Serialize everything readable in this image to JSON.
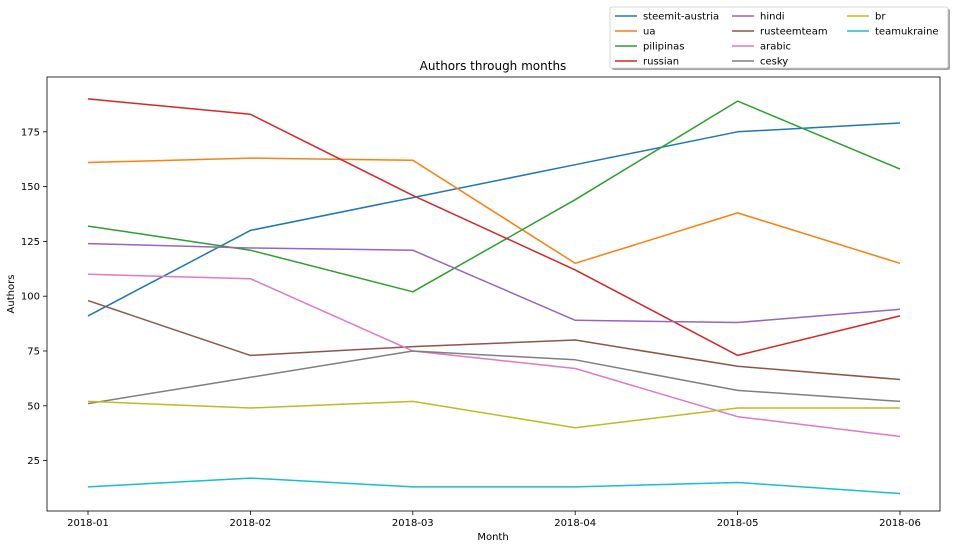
{
  "chart_data": {
    "type": "line",
    "title": "Authors through months",
    "xlabel": "Month",
    "ylabel": "Authors",
    "categories": [
      "2018-01",
      "2018-02",
      "2018-03",
      "2018-04",
      "2018-05",
      "2018-06"
    ],
    "ylim": [
      2,
      200
    ],
    "yticks": [
      25,
      50,
      75,
      100,
      125,
      150,
      175
    ],
    "grid": false,
    "legend_placement": "top-right, outside plot",
    "series": [
      {
        "name": "steemit-austria",
        "color": "#1f77b4",
        "values": [
          91,
          130,
          145,
          160,
          175,
          179
        ]
      },
      {
        "name": "ua",
        "color": "#ff7f0e",
        "values": [
          161,
          163,
          162,
          115,
          138,
          115
        ]
      },
      {
        "name": "pilipinas",
        "color": "#2ca02c",
        "values": [
          132,
          121,
          102,
          144,
          189,
          158
        ]
      },
      {
        "name": "russian",
        "color": "#d62728",
        "values": [
          190,
          183,
          146,
          112,
          73,
          91
        ]
      },
      {
        "name": "hindi",
        "color": "#9467bd",
        "values": [
          124,
          122,
          121,
          89,
          88,
          94
        ]
      },
      {
        "name": "rusteemteam",
        "color": "#8c564b",
        "values": [
          98,
          73,
          77,
          80,
          68,
          62
        ]
      },
      {
        "name": "arabic",
        "color": "#e377c2",
        "values": [
          110,
          108,
          75,
          67,
          45,
          36
        ]
      },
      {
        "name": "cesky",
        "color": "#7f7f7f",
        "values": [
          51,
          63,
          75,
          71,
          57,
          52
        ]
      },
      {
        "name": "br",
        "color": "#bcbd22",
        "values": [
          52,
          49,
          52,
          40,
          49,
          49
        ]
      },
      {
        "name": "teamukraine",
        "color": "#17becf",
        "values": [
          13,
          17,
          13,
          13,
          15,
          10
        ]
      }
    ]
  }
}
